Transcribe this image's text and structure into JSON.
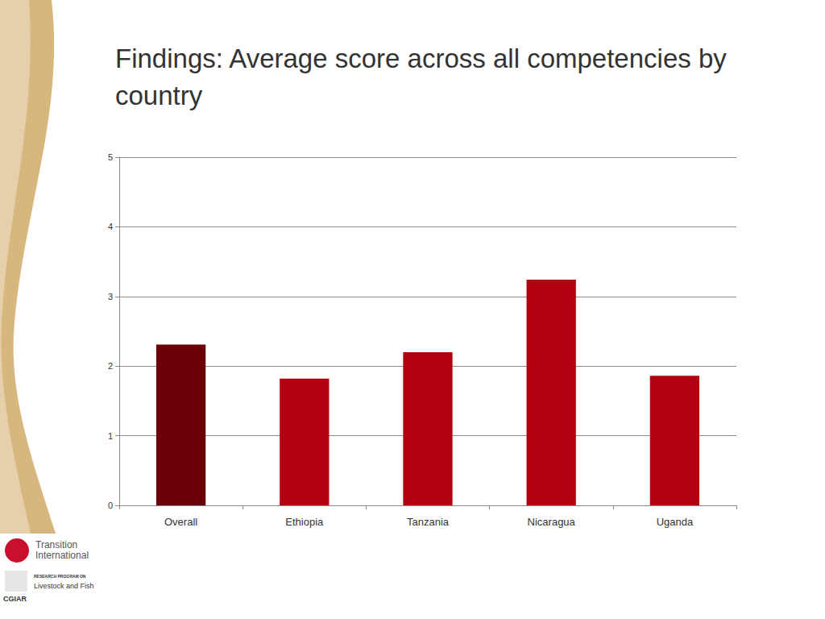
{
  "chart_data": {
    "type": "bar",
    "title": "Findings: Average score across all competencies by country",
    "categories": [
      "Overall",
      "Ethiopia",
      "Tanzania",
      "Nicaragua",
      "Uganda"
    ],
    "values": [
      2.31,
      1.82,
      2.2,
      3.24,
      1.86
    ],
    "colors": [
      "#6b0009",
      "#b3000f",
      "#b3000f",
      "#b3000f",
      "#b3000f"
    ],
    "ylim": [
      0,
      5
    ],
    "yticks": [
      0,
      1,
      2,
      3,
      4,
      5
    ],
    "grid": true
  },
  "logos": [
    "Transition International",
    "RESEARCH PROGRAM ON",
    "Livestock and Fish",
    "CGIAR"
  ]
}
